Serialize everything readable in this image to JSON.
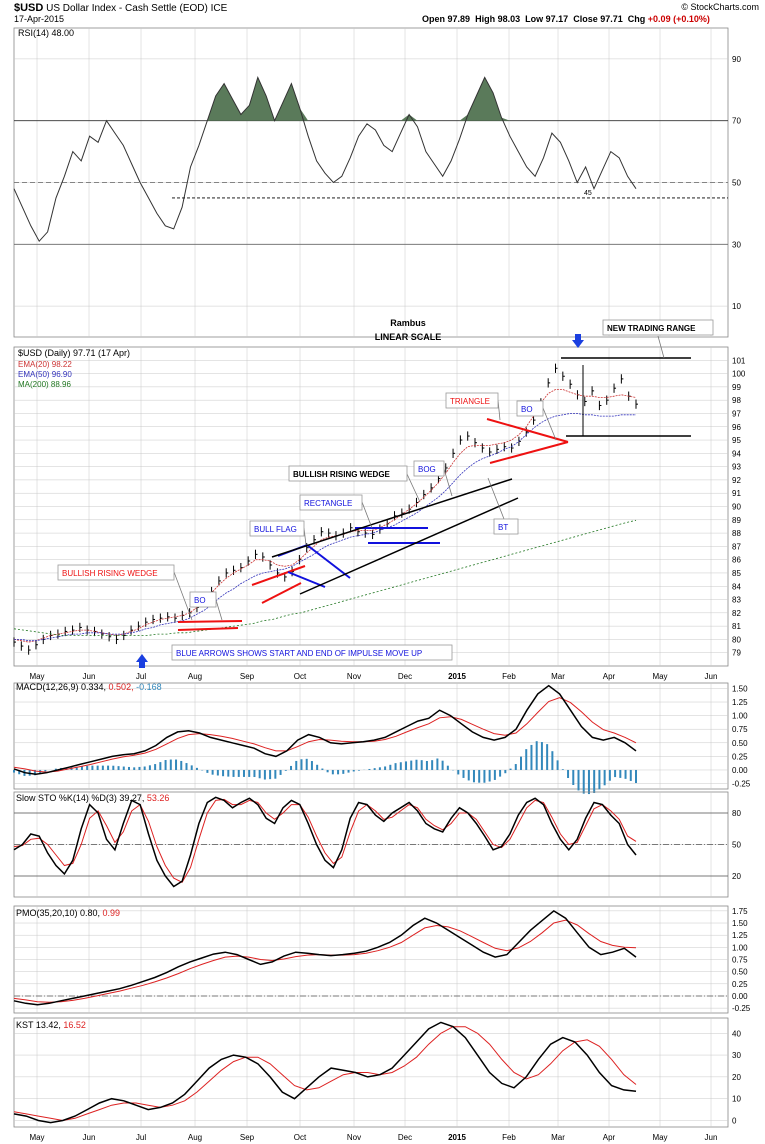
{
  "header": {
    "symbol": "$USD",
    "name": "US Dollar Index - Cash Settle (EOD)",
    "exchange": "ICE",
    "date": "17-Apr-2015",
    "open_label": "Open",
    "open": "97.89",
    "high_label": "High",
    "high": "98.03",
    "low_label": "Low",
    "low": "97.17",
    "close_label": "Close",
    "close": "97.71",
    "chg_label": "Chg",
    "chg": "+0.09 (+0.10%)",
    "copyright": "© StockCharts.com"
  },
  "colors": {
    "price": "#000000",
    "ema20": "#cc3333",
    "ema50": "#3333bb",
    "ma200": "#227722",
    "rsi_fill": "#5a7a5a",
    "macd_hist": "#3388bb",
    "signal": "#dd2222",
    "wedge_red": "#ee1111",
    "pattern_blue": "#1111dd",
    "arrow": "#1a3fe0",
    "grid": "#c8c8c8"
  },
  "x_axis": {
    "months": [
      "May",
      "Jun",
      "Jul",
      "Aug",
      "Sep",
      "Oct",
      "Nov",
      "Dec",
      "2015",
      "Feb",
      "Mar",
      "Apr",
      "May",
      "Jun"
    ]
  },
  "chart_data": [
    {
      "type": "line",
      "panel": "rsi",
      "legend": "RSI(14) 48.00",
      "ylim": [
        0,
        100
      ],
      "y_ticks": [
        90,
        70,
        50,
        30,
        10
      ],
      "levels": [
        70,
        50,
        30
      ],
      "support_label": "45",
      "support_level": 45,
      "values": [
        48,
        42,
        36,
        31,
        34,
        45,
        52,
        60,
        57,
        65,
        63,
        70,
        66,
        62,
        56,
        50,
        45,
        40,
        36,
        35,
        42,
        55,
        62,
        70,
        78,
        82,
        77,
        72,
        75,
        84,
        78,
        70,
        76,
        82,
        74,
        65,
        57,
        53,
        50,
        52,
        58,
        65,
        69,
        67,
        62,
        60,
        66,
        72,
        68,
        60,
        56,
        52,
        57,
        64,
        72,
        78,
        84,
        79,
        71,
        65,
        60,
        55,
        52,
        58,
        66,
        63,
        57,
        50,
        55,
        48,
        54,
        60,
        58,
        52,
        48
      ]
    },
    {
      "type": "line",
      "panel": "price",
      "title": "Rambus",
      "subtitle": "LINEAR SCALE",
      "legend_title": "$USD (Daily) 97.71 (17 Apr)",
      "legend": [
        {
          "label": "EMA(20) 98.22",
          "color": "#cc3333"
        },
        {
          "label": "EMA(50) 96.90",
          "color": "#3333bb"
        },
        {
          "label": "MA(200) 88.96",
          "color": "#227722"
        }
      ],
      "ylim": [
        78,
        102
      ],
      "y_ticks": [
        79,
        80,
        81,
        82,
        83,
        84,
        85,
        86,
        87,
        88,
        89,
        90,
        91,
        92,
        93,
        94,
        95,
        96,
        97,
        98,
        99,
        100,
        101
      ],
      "series": [
        {
          "name": "$USD",
          "values": [
            79.8,
            79.5,
            79.2,
            79.6,
            80.0,
            80.3,
            80.4,
            80.6,
            80.7,
            80.9,
            80.7,
            80.6,
            80.4,
            80.2,
            80.0,
            80.3,
            80.7,
            81.0,
            81.3,
            81.5,
            81.6,
            81.7,
            81.6,
            81.8,
            82.0,
            82.4,
            82.9,
            83.6,
            84.4,
            85.0,
            85.2,
            85.4,
            85.9,
            86.4,
            86.2,
            85.6,
            85.0,
            84.7,
            85.1,
            86.0,
            86.9,
            87.5,
            88.1,
            88.0,
            87.8,
            88.0,
            88.4,
            88.1,
            88.0,
            87.9,
            88.3,
            88.7,
            89.3,
            89.5,
            89.8,
            90.3,
            90.9,
            91.4,
            92.1,
            92.9,
            94.0,
            95.0,
            95.3,
            94.8,
            94.4,
            94.1,
            94.3,
            94.5,
            94.4,
            94.9,
            95.6,
            96.5,
            97.8,
            99.3,
            100.4,
            99.8,
            99.2,
            98.4,
            97.9,
            98.7,
            97.6,
            98.0,
            98.9,
            99.6,
            98.3,
            97.7
          ]
        },
        {
          "name": "EMA(20)",
          "values": [
            80.0,
            79.9,
            79.8,
            79.9,
            80.1,
            80.3,
            80.4,
            80.5,
            80.6,
            80.7,
            80.7,
            80.6,
            80.5,
            80.4,
            80.3,
            80.4,
            80.6,
            80.8,
            81.1,
            81.3,
            81.5,
            81.6,
            81.7,
            81.8,
            82.0,
            82.4,
            82.9,
            83.5,
            84.1,
            84.6,
            85.0,
            85.3,
            85.6,
            86.0,
            86.0,
            85.9,
            85.6,
            85.5,
            85.6,
            86.0,
            86.5,
            87.0,
            87.5,
            87.7,
            87.8,
            87.9,
            88.1,
            88.2,
            88.2,
            88.2,
            88.4,
            88.7,
            89.0,
            89.4,
            89.8,
            90.2,
            90.7,
            91.2,
            91.8,
            92.5,
            93.3,
            94.0,
            94.5,
            94.6,
            94.6,
            94.6,
            94.7,
            94.8,
            95.0,
            95.4,
            96.0,
            96.8,
            97.8,
            98.5,
            98.8,
            98.8,
            98.6,
            98.4,
            98.3,
            98.3,
            98.2,
            98.2,
            98.3,
            98.4,
            98.3,
            98.2
          ]
        },
        {
          "name": "EMA(50)",
          "values": [
            80.0,
            80.0,
            79.9,
            79.9,
            80.0,
            80.1,
            80.2,
            80.3,
            80.4,
            80.4,
            80.5,
            80.5,
            80.5,
            80.4,
            80.4,
            80.4,
            80.5,
            80.6,
            80.8,
            80.9,
            81.1,
            81.2,
            81.3,
            81.4,
            81.6,
            81.9,
            82.2,
            82.6,
            83.1,
            83.5,
            83.8,
            84.2,
            84.5,
            84.8,
            85.0,
            85.1,
            85.2,
            85.3,
            85.5,
            85.8,
            86.1,
            86.4,
            86.8,
            87.1,
            87.3,
            87.5,
            87.7,
            87.8,
            87.9,
            88.0,
            88.2,
            88.4,
            88.6,
            88.9,
            89.2,
            89.5,
            89.9,
            90.3,
            90.7,
            91.2,
            91.8,
            92.4,
            92.9,
            93.3,
            93.6,
            93.8,
            94.0,
            94.3,
            94.5,
            94.9,
            95.4,
            95.9,
            96.3,
            96.6,
            96.8,
            96.9,
            97.0,
            97.0,
            96.9,
            96.9,
            96.8,
            96.8,
            96.8,
            96.9,
            96.9,
            96.9
          ]
        },
        {
          "name": "MA(200)",
          "values": [
            80.8,
            80.7,
            80.6,
            80.5,
            80.4,
            80.3,
            80.3,
            80.3,
            80.3,
            80.3,
            80.3,
            80.3,
            80.3,
            80.3,
            80.3,
            80.4,
            80.4,
            80.5,
            80.5,
            80.6,
            80.7,
            80.8,
            80.9,
            81.0,
            81.1,
            81.2,
            81.4,
            81.5,
            81.7,
            81.9,
            82.0,
            82.2,
            82.4,
            82.6,
            82.8,
            83.0,
            83.2,
            83.4,
            83.6,
            83.8,
            84.0,
            84.2,
            84.4,
            84.6,
            84.8,
            85.0,
            85.2,
            85.4,
            85.6,
            85.8,
            86.0,
            86.2,
            86.4,
            86.6,
            86.8,
            87.0,
            87.2,
            87.4,
            87.6,
            87.8,
            88.0,
            88.2,
            88.4,
            88.6,
            88.8,
            88.96
          ]
        }
      ],
      "annotations": [
        "BULLISH RISING WEDGE",
        "BO",
        "BLUE ARROWS SHOWS START AND END OF IMPULSE MOVE UP",
        "BULL FLAG",
        "RECTANGLE",
        "BULLISH RISING WEDGE",
        "BOG",
        "BT",
        "TRIANGLE",
        "BO",
        "NEW TRADING RANGE"
      ]
    },
    {
      "type": "line",
      "panel": "macd",
      "legend": [
        "MACD(12,26,9) 0.334, ",
        "0.502, ",
        "-0.168"
      ],
      "ylim": [
        -0.35,
        1.6
      ],
      "y_ticks": [
        1.5,
        1.25,
        1.0,
        0.75,
        0.5,
        0.25,
        0.0,
        -0.25
      ],
      "series": [
        {
          "name": "MACD",
          "values": [
            0.02,
            -0.05,
            -0.08,
            -0.05,
            0.0,
            0.05,
            0.1,
            0.15,
            0.2,
            0.25,
            0.28,
            0.3,
            0.35,
            0.45,
            0.6,
            0.7,
            0.72,
            0.68,
            0.6,
            0.55,
            0.5,
            0.45,
            0.4,
            0.3,
            0.25,
            0.35,
            0.55,
            0.65,
            0.6,
            0.5,
            0.48,
            0.5,
            0.52,
            0.55,
            0.6,
            0.7,
            0.8,
            0.9,
            0.95,
            1.1,
            1.0,
            0.85,
            0.7,
            0.6,
            0.55,
            0.6,
            0.75,
            1.1,
            1.4,
            1.55,
            1.4,
            1.1,
            0.8,
            0.6,
            0.55,
            0.6,
            0.5,
            0.35
          ]
        },
        {
          "name": "Signal",
          "values": [
            0.05,
            0.02,
            -0.02,
            -0.04,
            -0.02,
            0.02,
            0.06,
            0.1,
            0.15,
            0.2,
            0.24,
            0.27,
            0.31,
            0.38,
            0.48,
            0.58,
            0.65,
            0.67,
            0.65,
            0.62,
            0.58,
            0.53,
            0.48,
            0.41,
            0.35,
            0.35,
            0.43,
            0.52,
            0.56,
            0.55,
            0.53,
            0.52,
            0.52,
            0.53,
            0.56,
            0.62,
            0.7,
            0.78,
            0.85,
            0.96,
            0.98,
            0.93,
            0.84,
            0.75,
            0.67,
            0.64,
            0.68,
            0.85,
            1.06,
            1.26,
            1.33,
            1.24,
            1.07,
            0.88,
            0.74,
            0.68,
            0.6,
            0.5
          ]
        }
      ]
    },
    {
      "type": "line",
      "panel": "slow_sto",
      "legend": [
        "Slow STO %K(14) %D(3) 39.27, ",
        "53.26"
      ],
      "ylim": [
        0,
        100
      ],
      "y_ticks": [
        80,
        50,
        20
      ],
      "levels": [
        80,
        50,
        20
      ],
      "series": [
        {
          "name": "%K",
          "values": [
            45,
            50,
            60,
            58,
            42,
            30,
            22,
            35,
            65,
            88,
            80,
            55,
            45,
            70,
            92,
            88,
            60,
            35,
            20,
            10,
            15,
            40,
            70,
            90,
            95,
            92,
            85,
            90,
            94,
            88,
            75,
            70,
            85,
            92,
            88,
            70,
            50,
            35,
            28,
            45,
            75,
            90,
            88,
            78,
            72,
            80,
            85,
            90,
            82,
            70,
            65,
            62,
            75,
            85,
            80,
            70,
            58,
            45,
            48,
            60,
            78,
            90,
            94,
            88,
            70,
            55,
            45,
            55,
            75,
            90,
            88,
            78,
            70,
            50,
            40
          ]
        },
        {
          "name": "%D",
          "values": [
            48,
            49,
            55,
            56,
            50,
            40,
            30,
            32,
            50,
            75,
            82,
            68,
            52,
            62,
            82,
            88,
            72,
            48,
            30,
            18,
            14,
            28,
            55,
            80,
            92,
            93,
            88,
            88,
            92,
            90,
            80,
            74,
            80,
            88,
            88,
            76,
            58,
            42,
            32,
            38,
            62,
            82,
            88,
            82,
            74,
            76,
            82,
            88,
            85,
            74,
            68,
            64,
            70,
            80,
            80,
            74,
            62,
            50,
            47,
            55,
            70,
            85,
            92,
            90,
            76,
            60,
            50,
            52,
            68,
            84,
            88,
            82,
            74,
            58,
            53
          ]
        }
      ]
    },
    {
      "type": "line",
      "panel": "pmo",
      "legend": [
        "PMO(35,20,10) 0.80, ",
        "0.99"
      ],
      "ylim": [
        -0.35,
        1.85
      ],
      "y_ticks": [
        1.75,
        1.5,
        1.25,
        1.0,
        0.75,
        0.5,
        0.25,
        0.0,
        -0.25
      ],
      "levels": [
        0
      ],
      "series": [
        {
          "name": "PMO",
          "values": [
            -0.1,
            -0.15,
            -0.18,
            -0.15,
            -0.1,
            -0.05,
            0.0,
            0.05,
            0.1,
            0.15,
            0.22,
            0.3,
            0.38,
            0.48,
            0.6,
            0.7,
            0.78,
            0.86,
            0.9,
            0.85,
            0.75,
            0.65,
            0.7,
            0.82,
            0.9,
            0.88,
            0.85,
            0.83,
            0.85,
            0.88,
            0.92,
            1.0,
            1.1,
            1.25,
            1.45,
            1.6,
            1.5,
            1.35,
            1.2,
            1.05,
            0.9,
            0.8,
            0.85,
            1.1,
            1.35,
            1.55,
            1.75,
            1.6,
            1.3,
            1.0,
            0.85,
            0.9,
            0.98,
            0.8
          ]
        },
        {
          "name": "Signal",
          "values": [
            -0.05,
            -0.08,
            -0.12,
            -0.13,
            -0.12,
            -0.09,
            -0.05,
            0.0,
            0.05,
            0.1,
            0.16,
            0.22,
            0.29,
            0.37,
            0.46,
            0.56,
            0.65,
            0.73,
            0.8,
            0.82,
            0.8,
            0.75,
            0.73,
            0.76,
            0.81,
            0.84,
            0.85,
            0.84,
            0.84,
            0.85,
            0.88,
            0.93,
            1.0,
            1.1,
            1.25,
            1.4,
            1.45,
            1.42,
            1.34,
            1.22,
            1.1,
            0.98,
            0.93,
            0.99,
            1.12,
            1.3,
            1.5,
            1.56,
            1.46,
            1.28,
            1.12,
            1.04,
            1.0,
            0.99
          ]
        }
      ]
    },
    {
      "type": "line",
      "panel": "kst",
      "legend": [
        "KST 13.42, ",
        "16.52"
      ],
      "ylim": [
        -3,
        47
      ],
      "y_ticks": [
        40,
        30,
        20,
        10,
        0
      ],
      "series": [
        {
          "name": "KST",
          "values": [
            3,
            2,
            0,
            -1,
            0,
            2,
            5,
            8,
            10,
            9,
            7,
            5,
            6,
            8,
            12,
            18,
            24,
            28,
            30,
            29,
            26,
            20,
            13,
            10,
            15,
            20,
            24,
            23,
            22,
            20,
            21,
            24,
            30,
            36,
            42,
            45,
            43,
            38,
            30,
            22,
            17,
            15,
            20,
            28,
            35,
            38,
            36,
            30,
            22,
            16,
            14,
            13.4
          ]
        },
        {
          "name": "Signal",
          "values": [
            4,
            3,
            2,
            1,
            0,
            1,
            3,
            5,
            7,
            8,
            8,
            7,
            6,
            7,
            9,
            13,
            18,
            23,
            27,
            29,
            29,
            26,
            21,
            16,
            14,
            15,
            18,
            21,
            22,
            22,
            21,
            22,
            25,
            29,
            35,
            40,
            43,
            43,
            40,
            35,
            28,
            22,
            19,
            21,
            26,
            32,
            36,
            37,
            34,
            28,
            21,
            16.5
          ]
        }
      ]
    }
  ]
}
